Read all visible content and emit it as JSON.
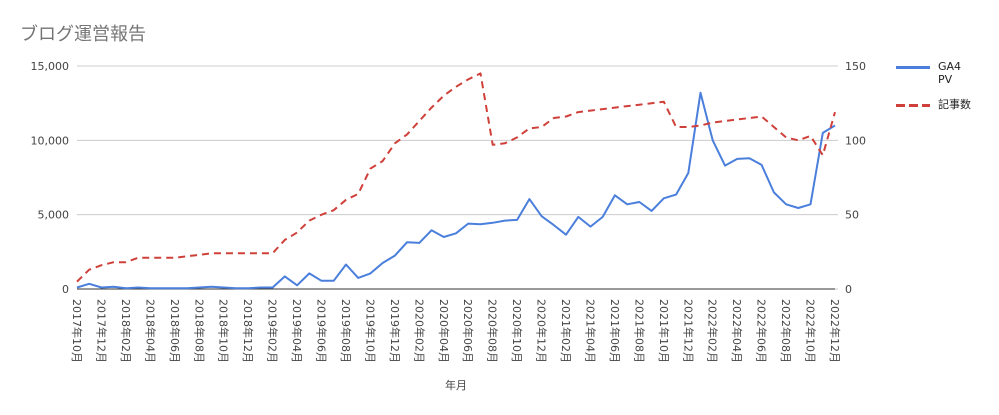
{
  "chart_data": {
    "type": "line",
    "title": "ブログ運営報告",
    "x_label": "年月",
    "categories": [
      "2017年10月",
      null,
      "2017年12月",
      null,
      "2018年02月",
      null,
      "2018年04月",
      null,
      "2018年06月",
      null,
      "2018年08月",
      null,
      "2018年10月",
      null,
      "2018年12月",
      null,
      "2019年02月",
      null,
      "2019年04月",
      null,
      "2019年06月",
      null,
      "2019年08月",
      null,
      "2019年10月",
      null,
      "2019年12月",
      null,
      "2020年02月",
      null,
      "2020年04月",
      null,
      "2020年06月",
      null,
      "2020年08月",
      null,
      "2020年10月",
      null,
      "2020年12月",
      null,
      "2021年02月",
      null,
      "2021年04月",
      null,
      "2021年06月",
      null,
      "2021年08月",
      null,
      "2021年10月",
      null,
      "2021年12月",
      null,
      "2022年02月",
      null,
      "2022年04月",
      null,
      "2022年06月",
      null,
      "2022年08月",
      null,
      "2022年10月",
      null,
      "2022年12月"
    ],
    "series": [
      {
        "name": "GA4 PV",
        "color": "#4a7fdc",
        "dash": false,
        "values": [
          100,
          350,
          100,
          150,
          50,
          100,
          50,
          50,
          50,
          50,
          100,
          150,
          100,
          50,
          50,
          100,
          100,
          850,
          250,
          1050,
          550,
          550,
          1650,
          750,
          1050,
          1750,
          2250,
          3150,
          3100,
          3950,
          3500,
          3750,
          4400,
          4350,
          4450,
          4600,
          4650,
          6050,
          4900,
          4300,
          3650,
          4850,
          4200,
          4850,
          6300,
          5700,
          5850,
          5250,
          6100,
          6350,
          7800,
          13200,
          10000,
          8300,
          8750,
          8800,
          8350,
          6500,
          5700,
          5450,
          5700,
          10500,
          11000
        ]
      },
      {
        "name": "記事数",
        "color": "#d0403a",
        "dash": true,
        "axis": "y2",
        "values": [
          5,
          13,
          16,
          18,
          18,
          21,
          21,
          21,
          21,
          22,
          23,
          24,
          24,
          24,
          24,
          24,
          24,
          33,
          38,
          46,
          50,
          53,
          60,
          64,
          81,
          86,
          98,
          104,
          113,
          122,
          130,
          136,
          141,
          145,
          97,
          98,
          102,
          108,
          109,
          115,
          116,
          119,
          120,
          121,
          122,
          123,
          124,
          125,
          126,
          109,
          109,
          110,
          112,
          113,
          114,
          115,
          116,
          109,
          102,
          100,
          103,
          90,
          119
        ]
      }
    ],
    "ylim": [
      0,
      15000
    ],
    "yticks": [
      0,
      {
        "value": 5000,
        "label": "5,000"
      },
      {
        "value": 10000,
        "label": "10,000"
      },
      {
        "value": 15000,
        "label": "15,000"
      }
    ],
    "y2lim": [
      0,
      150
    ],
    "y2ticks": [
      0,
      50,
      100,
      150
    ],
    "grid": true,
    "legend": "right"
  }
}
